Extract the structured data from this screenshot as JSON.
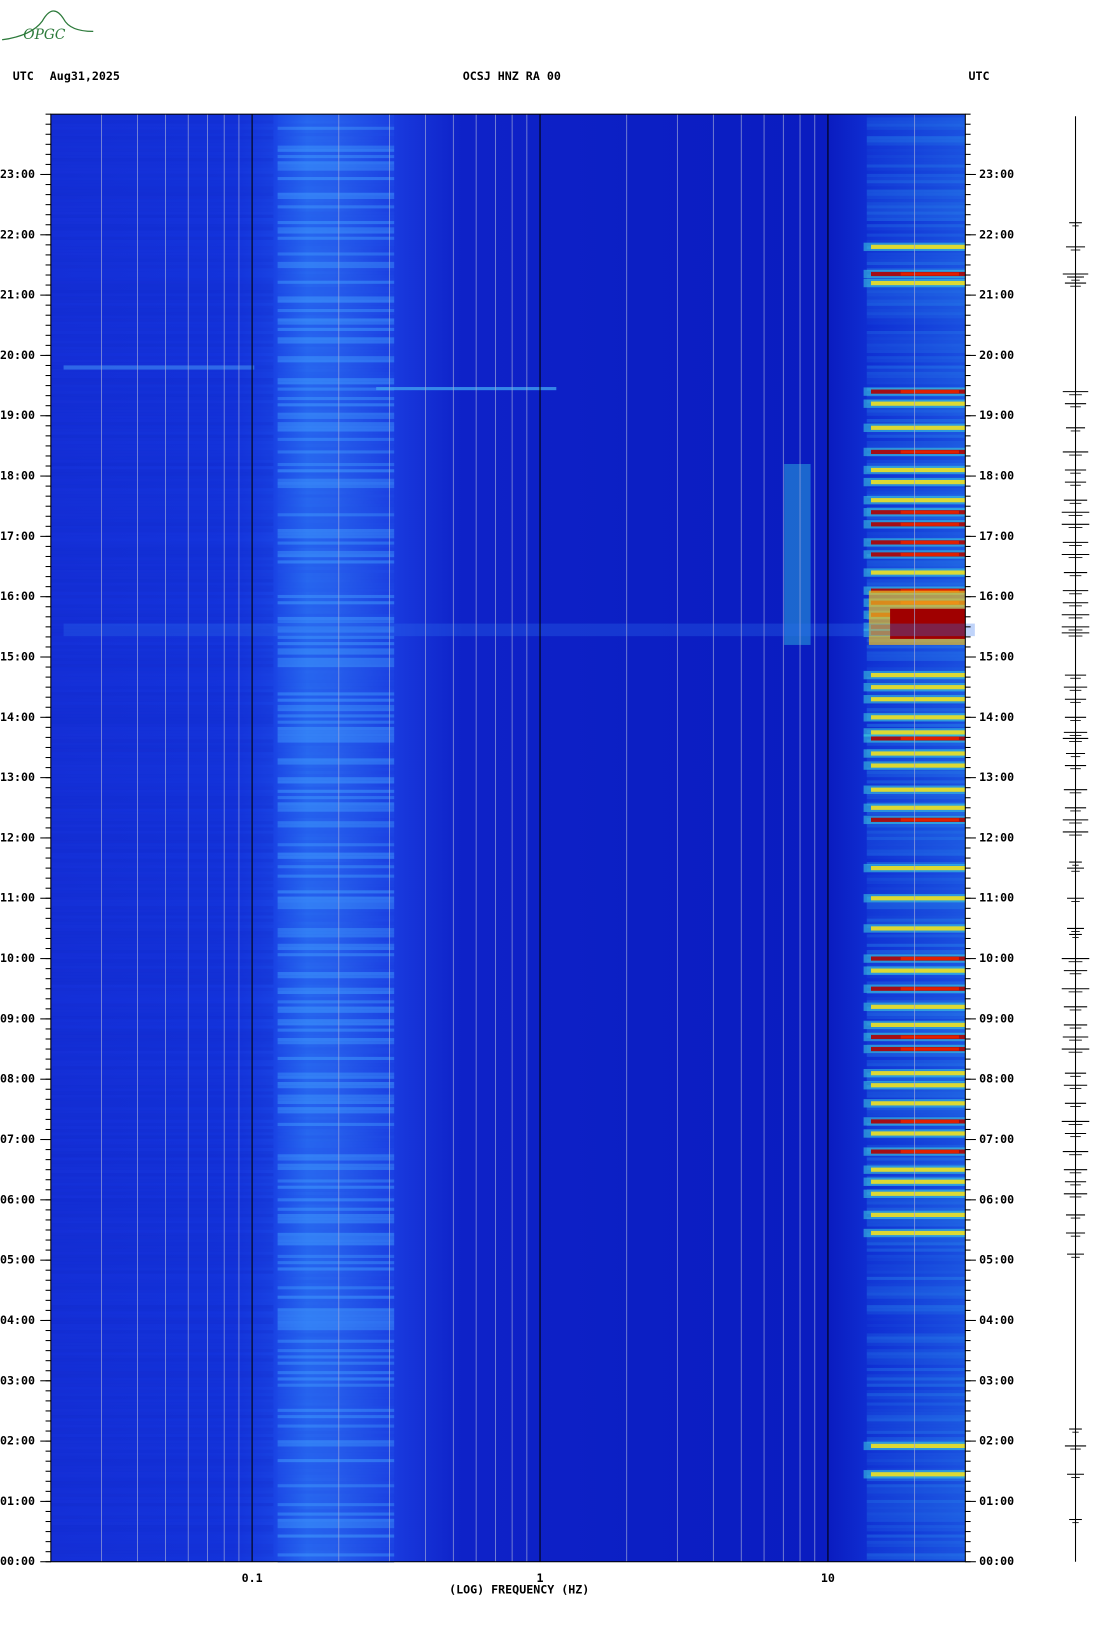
{
  "logo": "OPGC",
  "chart_data": {
    "type": "spectrogram",
    "header_left_1": "UTC",
    "header_left_2": "Aug31,2025",
    "title": "OCSJ HNZ RA 00",
    "header_right": "UTC",
    "xlabel": "(LOG) FREQUENCY (HZ)",
    "xscale": "log",
    "xlim": [
      0.02,
      30
    ],
    "xticks": [
      0.1,
      1,
      10
    ],
    "xminor": [
      0.03,
      0.04,
      0.05,
      0.06,
      0.07,
      0.08,
      0.09,
      0.2,
      0.3,
      0.4,
      0.5,
      0.6,
      0.7,
      0.8,
      0.9,
      2,
      3,
      4,
      5,
      6,
      7,
      8,
      9,
      20
    ],
    "ylim": [
      0,
      24
    ],
    "yticks": [
      {
        "value": 0,
        "label": "00:00"
      },
      {
        "value": 1,
        "label": "01:00"
      },
      {
        "value": 2,
        "label": "02:00"
      },
      {
        "value": 3,
        "label": "03:00"
      },
      {
        "value": 4,
        "label": "04:00"
      },
      {
        "value": 5,
        "label": "05:00"
      },
      {
        "value": 6,
        "label": "06:00"
      },
      {
        "value": 7,
        "label": "07:00"
      },
      {
        "value": 8,
        "label": "08:00"
      },
      {
        "value": 9,
        "label": "09:00"
      },
      {
        "value": 10,
        "label": "10:00"
      },
      {
        "value": 11,
        "label": "11:00"
      },
      {
        "value": 12,
        "label": "12:00"
      },
      {
        "value": 13,
        "label": "13:00"
      },
      {
        "value": 14,
        "label": "14:00"
      },
      {
        "value": 15,
        "label": "15:00"
      },
      {
        "value": 16,
        "label": "16:00"
      },
      {
        "value": 17,
        "label": "17:00"
      },
      {
        "value": 18,
        "label": "18:00"
      },
      {
        "value": 19,
        "label": "19:00"
      },
      {
        "value": 20,
        "label": "20:00"
      },
      {
        "value": 21,
        "label": "21:00"
      },
      {
        "value": 22,
        "label": "22:00"
      },
      {
        "value": 23,
        "label": "23:00"
      }
    ]
  }
}
